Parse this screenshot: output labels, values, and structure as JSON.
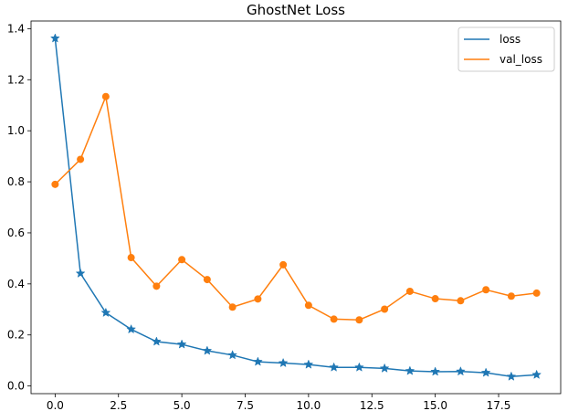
{
  "chart_data": {
    "type": "line",
    "title": "GhostNet Loss",
    "xlabel": "",
    "ylabel": "",
    "xlim": [
      -0.95,
      19.95
    ],
    "ylim": [
      -0.03,
      1.43
    ],
    "xticks": [
      0.0,
      2.5,
      5.0,
      7.5,
      10.0,
      12.5,
      15.0,
      17.5
    ],
    "xtick_labels": [
      "0.0",
      "2.5",
      "5.0",
      "7.5",
      "10.0",
      "12.5",
      "15.0",
      "17.5"
    ],
    "yticks": [
      0.0,
      0.2,
      0.4,
      0.6,
      0.8,
      1.0,
      1.2,
      1.4
    ],
    "ytick_labels": [
      "0.0",
      "0.2",
      "0.4",
      "0.6",
      "0.8",
      "1.0",
      "1.2",
      "1.4"
    ],
    "grid": false,
    "legend_position": "top-right",
    "x": [
      0,
      1,
      2,
      3,
      4,
      5,
      6,
      7,
      8,
      9,
      10,
      11,
      12,
      13,
      14,
      15,
      16,
      17,
      18,
      19
    ],
    "series": [
      {
        "name": "loss",
        "color": "#1f77b4",
        "marker": "star",
        "values": [
          1.362,
          0.441,
          0.287,
          0.222,
          0.174,
          0.163,
          0.138,
          0.121,
          0.095,
          0.09,
          0.084,
          0.073,
          0.073,
          0.069,
          0.059,
          0.056,
          0.057,
          0.052,
          0.037,
          0.044
        ]
      },
      {
        "name": "val_loss",
        "color": "#ff7f0e",
        "marker": "circle",
        "values": [
          0.79,
          0.888,
          1.134,
          0.503,
          0.391,
          0.495,
          0.417,
          0.309,
          0.341,
          0.475,
          0.316,
          0.262,
          0.259,
          0.301,
          0.371,
          0.342,
          0.334,
          0.377,
          0.352,
          0.364
        ]
      }
    ]
  }
}
